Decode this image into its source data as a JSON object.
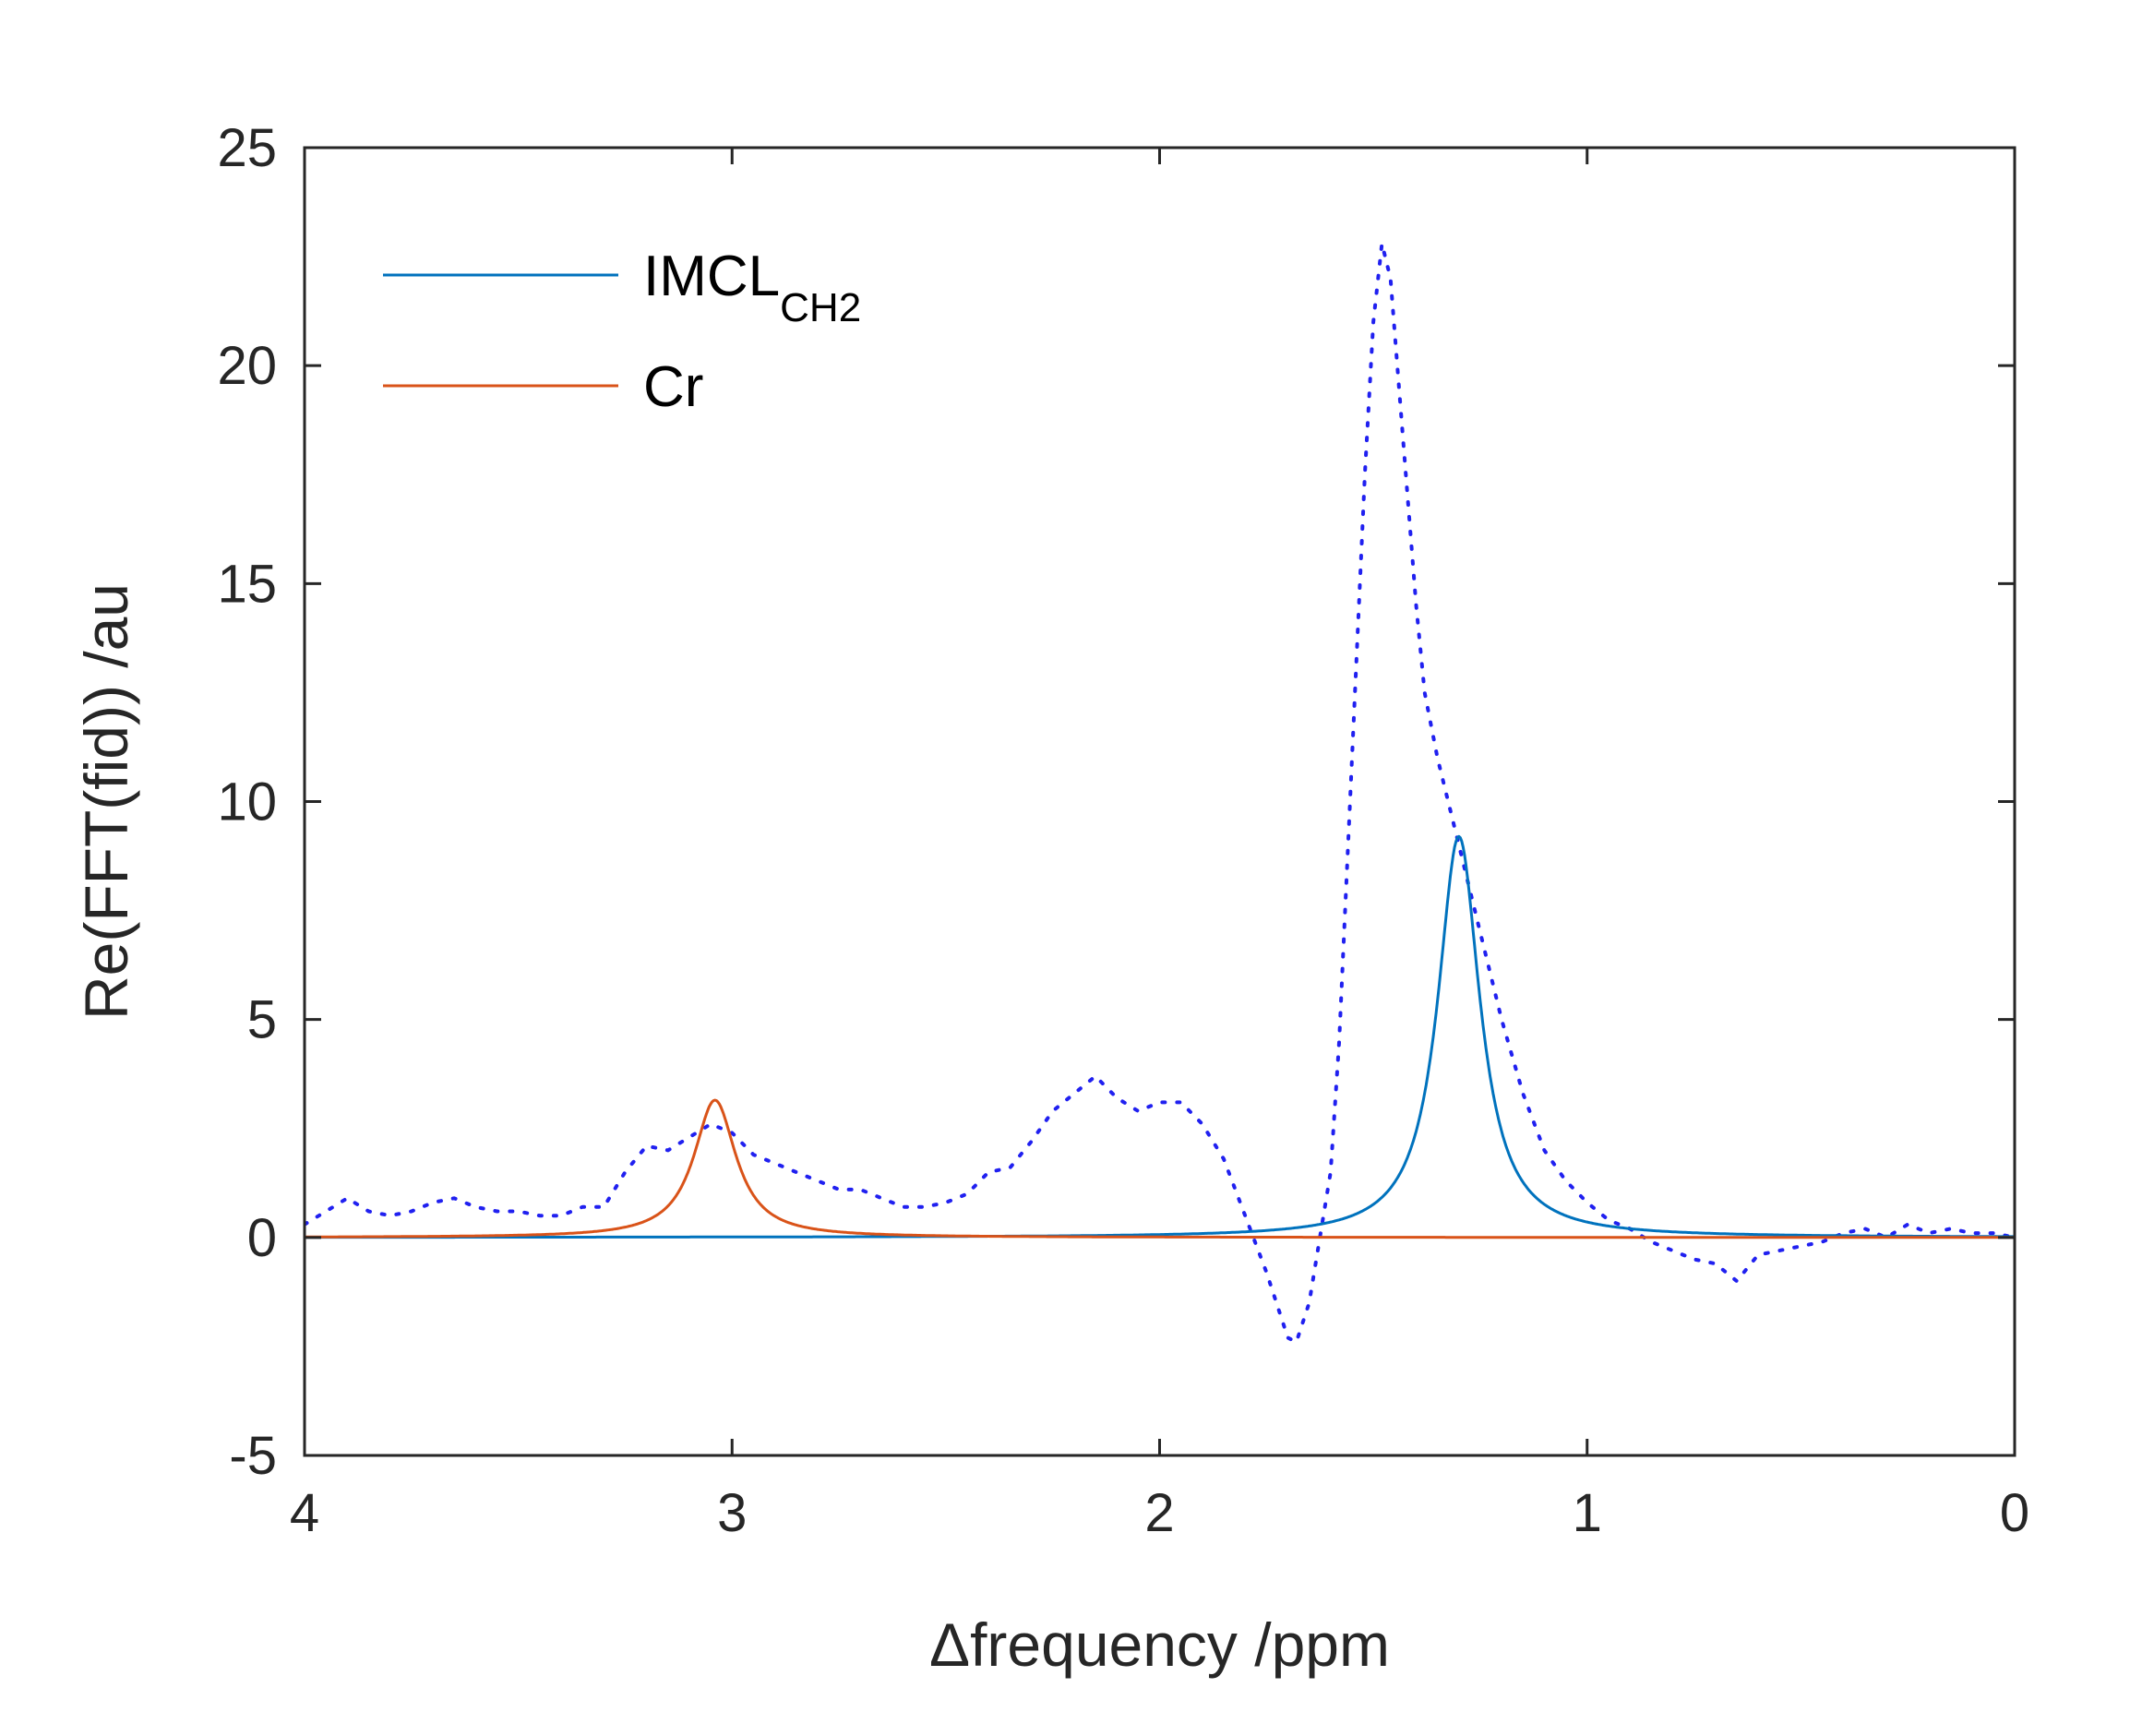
{
  "chart_data": {
    "type": "line",
    "xlabel": "Δfrequency /ppm",
    "ylabel": "Re(FFT(fid)) /au",
    "xlim": [
      4,
      0
    ],
    "ylim": [
      -5,
      25
    ],
    "x_reversed": true,
    "xticks": [
      4,
      3,
      2,
      1,
      0
    ],
    "yticks": [
      -5,
      0,
      5,
      10,
      15,
      20,
      25
    ],
    "grid": false,
    "legend_position": "top-left",
    "series": [
      {
        "name": "IMCL",
        "name_subscript": "CH2",
        "style": "solid",
        "color": "#0072BD",
        "lorentzian": {
          "center": 1.3,
          "amplitude": 9.2,
          "hwhm": 0.06
        }
      },
      {
        "name": "Cr",
        "style": "solid",
        "color": "#D95319",
        "lorentzian": {
          "center": 3.04,
          "amplitude": 3.15,
          "hwhm": 0.06
        }
      },
      {
        "style": "dotted",
        "color": "#2020F0",
        "x": [
          4.0,
          3.95,
          3.9,
          3.85,
          3.8,
          3.75,
          3.7,
          3.65,
          3.6,
          3.55,
          3.5,
          3.45,
          3.4,
          3.35,
          3.3,
          3.25,
          3.2,
          3.15,
          3.1,
          3.05,
          3.0,
          2.95,
          2.9,
          2.85,
          2.8,
          2.75,
          2.7,
          2.65,
          2.6,
          2.55,
          2.5,
          2.45,
          2.4,
          2.35,
          2.3,
          2.25,
          2.2,
          2.15,
          2.1,
          2.05,
          2.0,
          1.95,
          1.9,
          1.85,
          1.8,
          1.75,
          1.7,
          1.68,
          1.65,
          1.6,
          1.58,
          1.55,
          1.52,
          1.5,
          1.48,
          1.46,
          1.44,
          1.42,
          1.4,
          1.38,
          1.35,
          1.3,
          1.25,
          1.2,
          1.15,
          1.1,
          1.05,
          1.0,
          0.95,
          0.9,
          0.85,
          0.8,
          0.75,
          0.7,
          0.65,
          0.6,
          0.55,
          0.5,
          0.45,
          0.4,
          0.35,
          0.3,
          0.25,
          0.2,
          0.15,
          0.1,
          0.05,
          0.0
        ],
        "y": [
          0.3,
          0.6,
          0.9,
          0.6,
          0.5,
          0.6,
          0.8,
          0.9,
          0.7,
          0.6,
          0.6,
          0.5,
          0.5,
          0.7,
          0.7,
          1.5,
          2.1,
          2.0,
          2.3,
          2.6,
          2.4,
          1.9,
          1.7,
          1.5,
          1.3,
          1.1,
          1.1,
          0.9,
          0.7,
          0.7,
          0.8,
          1.0,
          1.5,
          1.6,
          2.2,
          2.9,
          3.3,
          3.7,
          3.2,
          2.9,
          3.1,
          3.1,
          2.6,
          1.8,
          0.5,
          -0.8,
          -2.3,
          -2.4,
          -1.5,
          1.5,
          4.5,
          11.0,
          17.5,
          21.0,
          22.8,
          22.0,
          19.5,
          17.0,
          14.5,
          12.5,
          11.0,
          9.0,
          7.0,
          5.0,
          3.3,
          2.0,
          1.3,
          0.8,
          0.4,
          0.2,
          -0.1,
          -0.3,
          -0.5,
          -0.6,
          -1.0,
          -0.4,
          -0.3,
          -0.2,
          -0.1,
          0.1,
          0.2,
          0.0,
          0.3,
          0.1,
          0.2,
          0.1,
          0.1,
          0.0
        ]
      }
    ]
  }
}
